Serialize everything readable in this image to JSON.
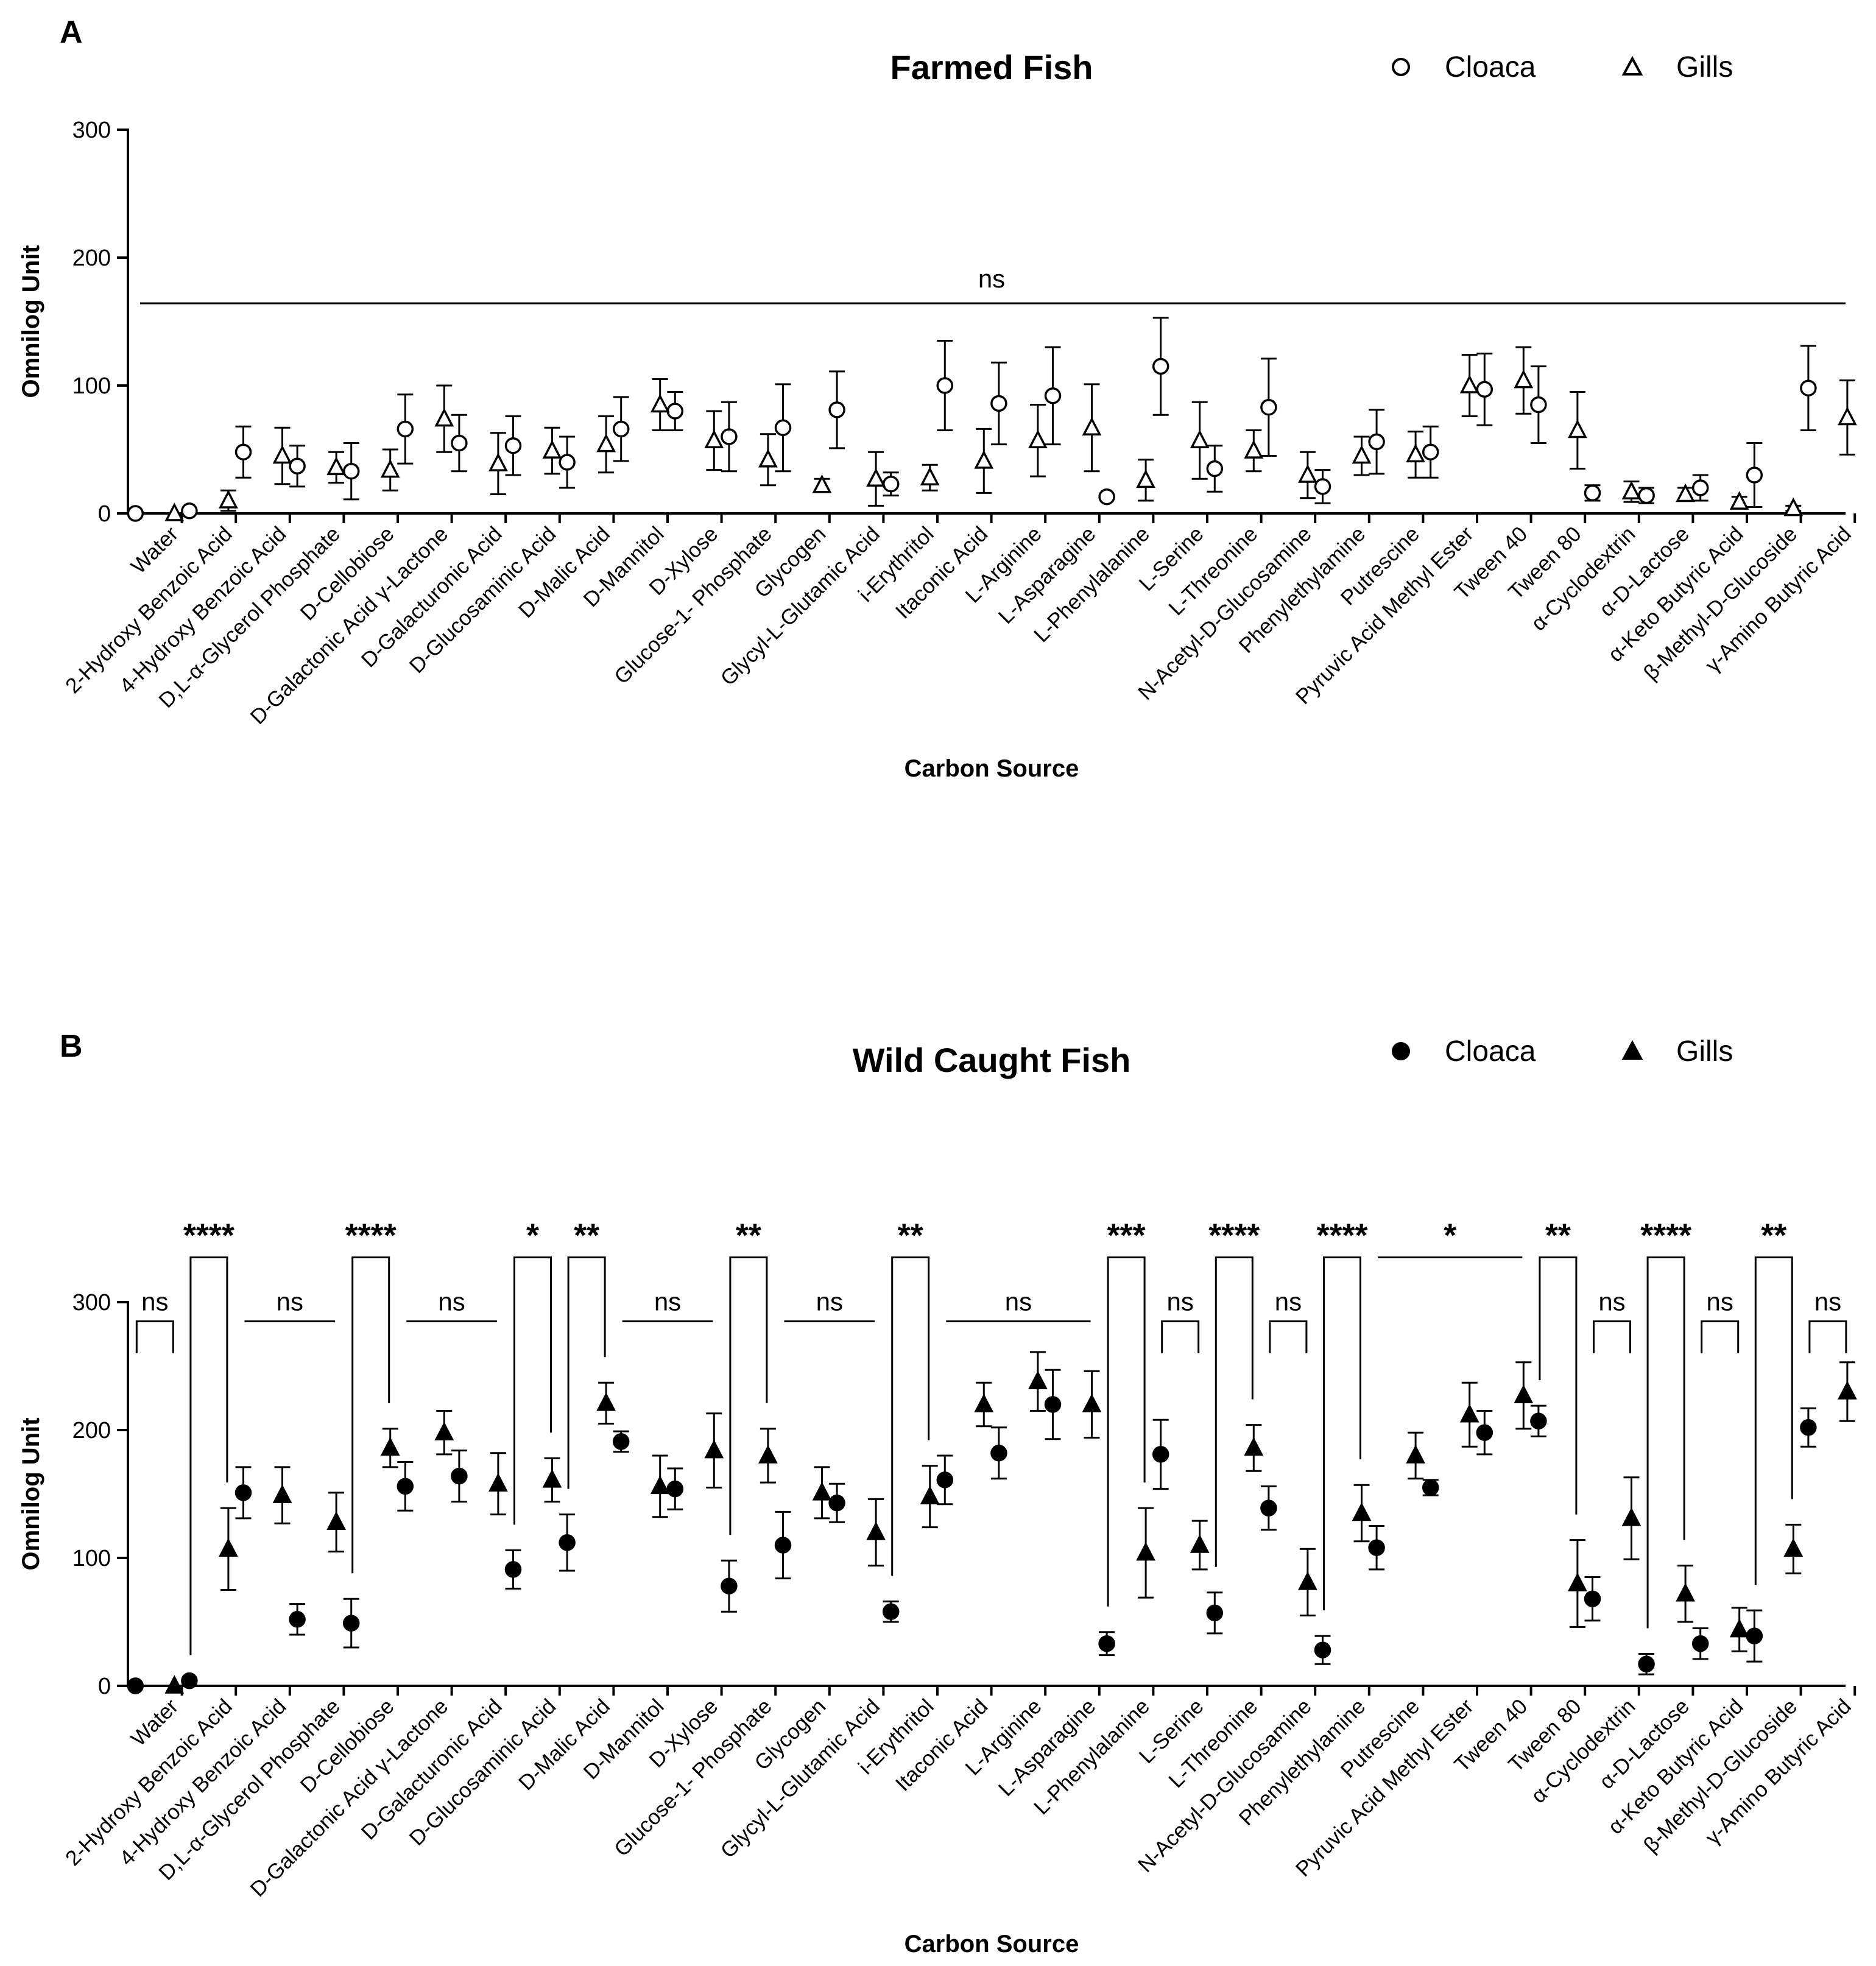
{
  "categories": [
    "Water",
    "2-Hydroxy Benzoic Acid",
    "4-Hydroxy Benzoic Acid",
    "D,L-α-Glycerol Phosphate",
    "D-Cellobiose",
    "D-Galactonic Acid γ-Lactone",
    "D-Galacturonic Acid",
    "D-Glucosaminic Acid",
    "D-Malic Acid",
    "D-Mannitol",
    "D-Xylose",
    "Glucose-1- Phosphate",
    "Glycogen",
    "Glycyl-L-Glutamic Acid",
    "i-Erythritol",
    "Itaconic Acid",
    "L-Arginine",
    "L-Asparagine",
    "L-Phenylalanine",
    "L-Serine",
    "L-Threonine",
    "N-Acetyl-D-Glucosamine",
    "Phenylethylamine",
    "Putrescine",
    "Pyruvic Acid Methyl Ester",
    "Tween 40",
    "Tween 80",
    "α-Cyclodextrin",
    "α-D-Lactose",
    "α-Keto Butyric Acid",
    "β-Methyl-D-Glucoside",
    "γ-Amino Butyric Acid"
  ],
  "chart_data": [
    {
      "panel": "A",
      "type": "scatter",
      "title": "Farmed Fish",
      "xlabel": "Carbon Source",
      "ylabel": "Omnilog Unit",
      "ylim": [
        0,
        300
      ],
      "yticks": [
        0,
        100,
        200,
        300
      ],
      "legend": {
        "placement": "top-right",
        "entries": [
          "Cloaca",
          "Gills"
        ]
      },
      "marker_style": "open",
      "series": [
        {
          "name": "Cloaca",
          "marker": "circle",
          "values": [
            0,
            2,
            48,
            37,
            33,
            66,
            55,
            53,
            40,
            66,
            80,
            60,
            67,
            81,
            23,
            100,
            86,
            92,
            13,
            115,
            35,
            83,
            21,
            56,
            48,
            97,
            85,
            16,
            14,
            20,
            30,
            98
          ],
          "errors": [
            0,
            0,
            20,
            16,
            22,
            27,
            22,
            23,
            20,
            25,
            15,
            27,
            34,
            30,
            9,
            35,
            32,
            38,
            0,
            38,
            18,
            38,
            13,
            25,
            20,
            28,
            30,
            6,
            6,
            10,
            25,
            33
          ]
        },
        {
          "name": "Gills",
          "marker": "triangle",
          "values": [
            0,
            10,
            45,
            36,
            34,
            74,
            39,
            49,
            54,
            85,
            57,
            42,
            22,
            27,
            28,
            41,
            57,
            67,
            26,
            57,
            49,
            30,
            45,
            46,
            100,
            104,
            65,
            17,
            15,
            9,
            4,
            75
          ],
          "errors": [
            0,
            8,
            22,
            12,
            16,
            26,
            24,
            18,
            22,
            20,
            23,
            20,
            5,
            21,
            10,
            25,
            28,
            34,
            16,
            30,
            16,
            18,
            15,
            18,
            24,
            26,
            30,
            8,
            5,
            4,
            2,
            29
          ]
        }
      ],
      "annotations": [
        {
          "text": "ns",
          "type": "overall-line"
        }
      ]
    },
    {
      "panel": "B",
      "type": "scatter",
      "title": "Wild Caught Fish",
      "xlabel": "Carbon Source",
      "ylabel": "Omnilog Unit",
      "ylim": [
        0,
        300
      ],
      "yticks": [
        0,
        100,
        200,
        300
      ],
      "legend": {
        "placement": "top-right",
        "entries": [
          "Cloaca",
          "Gills"
        ]
      },
      "marker_style": "filled",
      "series": [
        {
          "name": "Cloaca",
          "marker": "circle",
          "values": [
            0,
            4,
            151,
            52,
            49,
            156,
            164,
            91,
            112,
            191,
            154,
            78,
            110,
            143,
            58,
            161,
            182,
            220,
            33,
            181,
            57,
            139,
            28,
            108,
            155,
            198,
            207,
            68,
            17,
            33,
            39,
            202
          ],
          "errors": [
            0,
            0,
            20,
            12,
            19,
            19,
            20,
            15,
            22,
            8,
            16,
            20,
            26,
            15,
            8,
            19,
            20,
            27,
            9,
            27,
            16,
            17,
            11,
            17,
            6,
            17,
            12,
            17,
            8,
            12,
            20,
            15
          ]
        },
        {
          "name": "Gills",
          "marker": "triangle",
          "values": [
            0,
            107,
            149,
            128,
            186,
            198,
            158,
            161,
            221,
            156,
            184,
            180,
            151,
            120,
            148,
            220,
            238,
            220,
            104,
            110,
            186,
            81,
            135,
            180,
            212,
            227,
            80,
            131,
            72,
            44,
            107,
            230
          ],
          "errors": [
            0,
            32,
            22,
            23,
            15,
            17,
            24,
            17,
            16,
            24,
            29,
            21,
            20,
            26,
            24,
            17,
            23,
            26,
            35,
            19,
            18,
            26,
            22,
            18,
            25,
            26,
            34,
            32,
            22,
            17,
            19,
            23
          ]
        }
      ],
      "comparisons": [
        {
          "from": 0,
          "to": 0,
          "label": "ns",
          "type": "bracket"
        },
        {
          "from": 1,
          "to": 1,
          "label": "****",
          "type": "bracket"
        },
        {
          "from": 2,
          "to": 3,
          "label": "ns",
          "type": "line"
        },
        {
          "from": 4,
          "to": 4,
          "label": "****",
          "type": "bracket"
        },
        {
          "from": 5,
          "to": 6,
          "label": "ns",
          "type": "line"
        },
        {
          "from": 7,
          "to": 7,
          "label": "*",
          "type": "bracket"
        },
        {
          "from": 8,
          "to": 8,
          "label": "**",
          "type": "bracket"
        },
        {
          "from": 9,
          "to": 10,
          "label": "ns",
          "type": "line"
        },
        {
          "from": 11,
          "to": 11,
          "label": "**",
          "type": "bracket"
        },
        {
          "from": 12,
          "to": 13,
          "label": "ns",
          "type": "line"
        },
        {
          "from": 14,
          "to": 14,
          "label": "**",
          "type": "bracket"
        },
        {
          "from": 15,
          "to": 17,
          "label": "ns",
          "type": "line"
        },
        {
          "from": 18,
          "to": 18,
          "label": "***",
          "type": "bracket"
        },
        {
          "from": 19,
          "to": 19,
          "label": "ns",
          "type": "bracket"
        },
        {
          "from": 20,
          "to": 20,
          "label": "****",
          "type": "bracket"
        },
        {
          "from": 21,
          "to": 21,
          "label": "ns",
          "type": "bracket"
        },
        {
          "from": 22,
          "to": 22,
          "label": "****",
          "type": "bracket"
        },
        {
          "from": 23,
          "to": 25,
          "label": "*",
          "type": "line"
        },
        {
          "from": 26,
          "to": 26,
          "label": "**",
          "type": "bracket"
        },
        {
          "from": 27,
          "to": 27,
          "label": "ns",
          "type": "bracket"
        },
        {
          "from": 28,
          "to": 28,
          "label": "****",
          "type": "bracket"
        },
        {
          "from": 29,
          "to": 29,
          "label": "ns",
          "type": "bracket"
        },
        {
          "from": 30,
          "to": 30,
          "label": "**",
          "type": "bracket"
        },
        {
          "from": 31,
          "to": 31,
          "label": "ns",
          "type": "bracket"
        }
      ]
    }
  ]
}
